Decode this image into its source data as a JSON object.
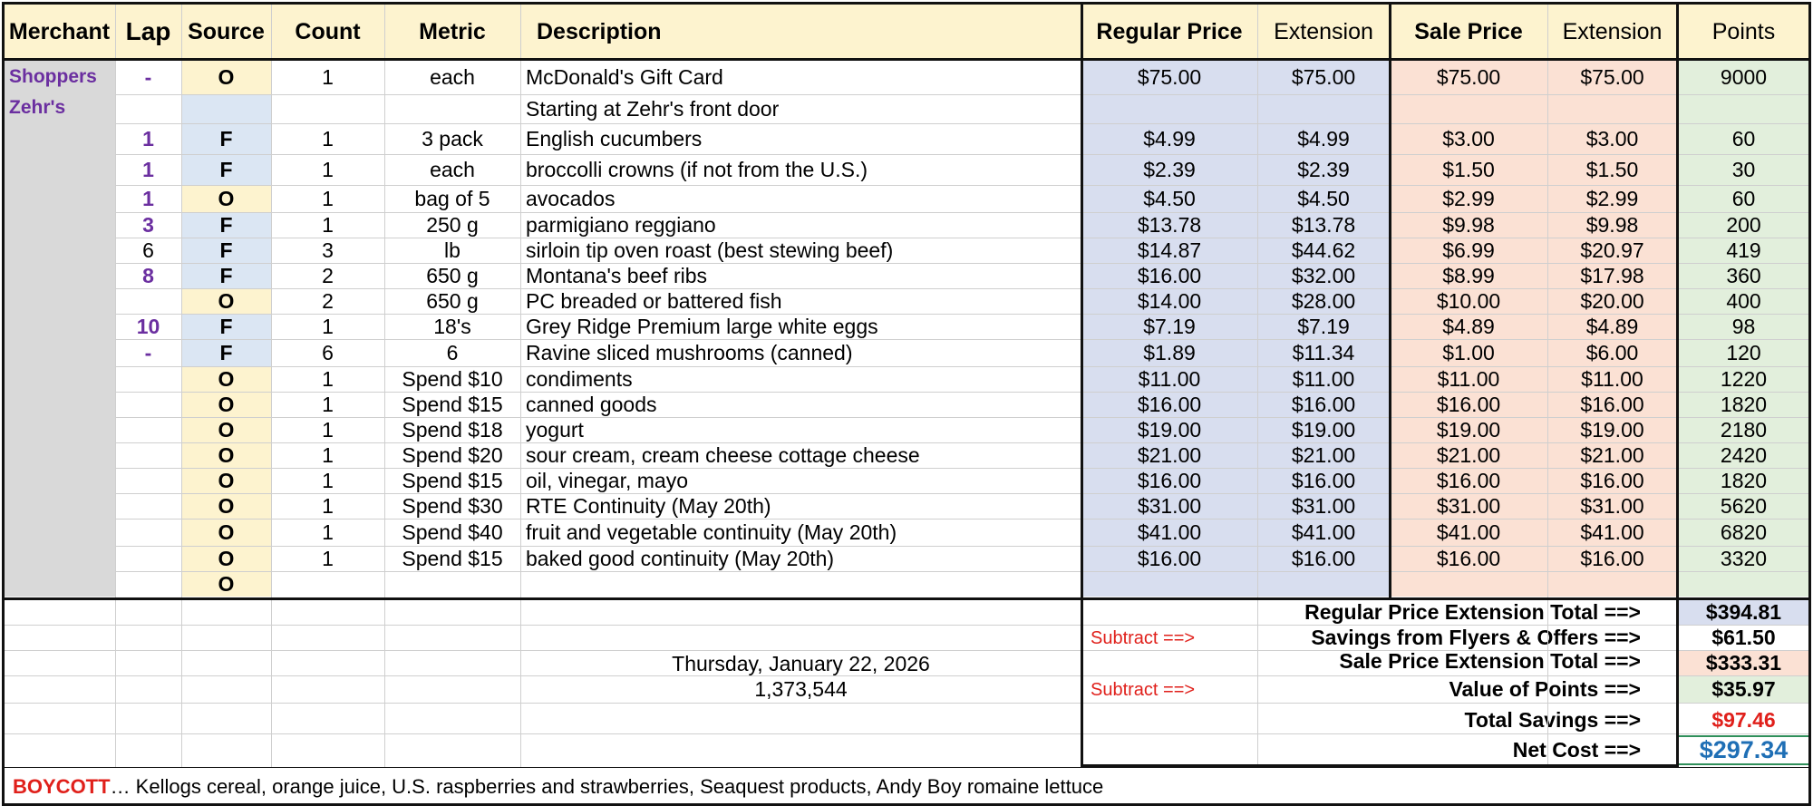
{
  "headers": {
    "merchant": "Merchant",
    "lap": "Lap",
    "source": "Source",
    "count": "Count",
    "metric": "Metric",
    "description": "Description",
    "regular_price": "Regular Price",
    "reg_extension": "Extension",
    "sale_price": "Sale Price",
    "sale_extension": "Extension",
    "points": "Points"
  },
  "merchants": [
    "Shoppers",
    "Zehr's"
  ],
  "rows": [
    {
      "lap": "-",
      "source": "O",
      "count": "1",
      "metric": "each",
      "desc": "McDonald's Gift Card",
      "reg": "$75.00",
      "regext": "$75.00",
      "sale": "$75.00",
      "saleext": "$75.00",
      "pts": "9000"
    },
    {
      "lap": "",
      "source": "",
      "count": "",
      "metric": "",
      "desc": "Starting at Zehr's front door",
      "reg": "",
      "regext": "",
      "sale": "",
      "saleext": "",
      "pts": ""
    },
    {
      "lap": "1",
      "source": "F",
      "count": "1",
      "metric": "3 pack",
      "desc": "English cucumbers",
      "reg": "$4.99",
      "regext": "$4.99",
      "sale": "$3.00",
      "saleext": "$3.00",
      "pts": "60"
    },
    {
      "lap": "1",
      "source": "F",
      "count": "1",
      "metric": "each",
      "desc": "broccolli crowns (if not from the U.S.)",
      "reg": "$2.39",
      "regext": "$2.39",
      "sale": "$1.50",
      "saleext": "$1.50",
      "pts": "30"
    },
    {
      "lap": "1",
      "source": "O",
      "count": "1",
      "metric": "bag of 5",
      "desc": "avocados",
      "reg": "$4.50",
      "regext": "$4.50",
      "sale": "$2.99",
      "saleext": "$2.99",
      "pts": "60"
    },
    {
      "lap": "3",
      "source": "F",
      "count": "1",
      "metric": "250 g",
      "desc": "parmigiano reggiano",
      "reg": "$13.78",
      "regext": "$13.78",
      "sale": "$9.98",
      "saleext": "$9.98",
      "pts": "200"
    },
    {
      "lap": "6",
      "source": "F",
      "count": "3",
      "metric": "lb",
      "desc": "sirloin tip oven roast  (best stewing beef)",
      "reg": "$14.87",
      "regext": "$44.62",
      "sale": "$6.99",
      "saleext": "$20.97",
      "pts": "419"
    },
    {
      "lap": "8",
      "source": "F",
      "count": "2",
      "metric": "650 g",
      "desc": "Montana's beef ribs",
      "reg": "$16.00",
      "regext": "$32.00",
      "sale": "$8.99",
      "saleext": "$17.98",
      "pts": "360"
    },
    {
      "lap": "",
      "source": "O",
      "count": "2",
      "metric": "650 g",
      "desc": "PC breaded or battered fish",
      "reg": "$14.00",
      "regext": "$28.00",
      "sale": "$10.00",
      "saleext": "$20.00",
      "pts": "400"
    },
    {
      "lap": "10",
      "source": "F",
      "count": "1",
      "metric": "18's",
      "desc": "Grey Ridge Premium large white eggs",
      "reg": "$7.19",
      "regext": "$7.19",
      "sale": "$4.89",
      "saleext": "$4.89",
      "pts": "98"
    },
    {
      "lap": "-",
      "source": "F",
      "count": "6",
      "metric": "6",
      "desc": "Ravine sliced mushrooms (canned)",
      "reg": "$1.89",
      "regext": "$11.34",
      "sale": "$1.00",
      "saleext": "$6.00",
      "pts": "120"
    },
    {
      "lap": "",
      "source": "O",
      "count": "1",
      "metric": "Spend $10",
      "desc": "condiments",
      "reg": "$11.00",
      "regext": "$11.00",
      "sale": "$11.00",
      "saleext": "$11.00",
      "pts": "1220"
    },
    {
      "lap": "",
      "source": "O",
      "count": "1",
      "metric": "Spend $15",
      "desc": "canned goods",
      "reg": "$16.00",
      "regext": "$16.00",
      "sale": "$16.00",
      "saleext": "$16.00",
      "pts": "1820"
    },
    {
      "lap": "",
      "source": "O",
      "count": "1",
      "metric": "Spend $18",
      "desc": "yogurt",
      "reg": "$19.00",
      "regext": "$19.00",
      "sale": "$19.00",
      "saleext": "$19.00",
      "pts": "2180"
    },
    {
      "lap": "",
      "source": "O",
      "count": "1",
      "metric": "Spend $20",
      "desc": "sour cream, cream cheese cottage cheese",
      "reg": "$21.00",
      "regext": "$21.00",
      "sale": "$21.00",
      "saleext": "$21.00",
      "pts": "2420"
    },
    {
      "lap": "",
      "source": "O",
      "count": "1",
      "metric": "Spend $15",
      "desc": "oil, vinegar, mayo",
      "reg": "$16.00",
      "regext": "$16.00",
      "sale": "$16.00",
      "saleext": "$16.00",
      "pts": "1820"
    },
    {
      "lap": "",
      "source": "O",
      "count": "1",
      "metric": "Spend $30",
      "desc": "RTE Continuity (May 20th)",
      "reg": "$31.00",
      "regext": "$31.00",
      "sale": "$31.00",
      "saleext": "$31.00",
      "pts": "5620"
    },
    {
      "lap": "",
      "source": "O",
      "count": "1",
      "metric": "Spend $40",
      "desc": "fruit and vegetable continuity (May 20th)",
      "reg": "$41.00",
      "regext": "$41.00",
      "sale": "$41.00",
      "saleext": "$41.00",
      "pts": "6820"
    },
    {
      "lap": "",
      "source": "O",
      "count": "1",
      "metric": "Spend $15",
      "desc": "baked good continuity (May 20th)",
      "reg": "$16.00",
      "regext": "$16.00",
      "sale": "$16.00",
      "saleext": "$16.00",
      "pts": "3320"
    },
    {
      "lap": "",
      "source": "O",
      "count": "",
      "metric": "",
      "desc": "",
      "reg": "",
      "regext": "",
      "sale": "",
      "saleext": "",
      "pts": ""
    }
  ],
  "summary": {
    "date": "Thursday, January 22, 2026",
    "number": "1,373,544",
    "subtract_1": "Subtract ==>",
    "subtract_2": "Subtract ==>",
    "reg_total_label": "Regular Price Extension Total ==>",
    "reg_total": "$394.81",
    "savings_label": "Savings from Flyers & Offers ==>",
    "savings": "$61.50",
    "sale_total_label": "Sale Price Extension Total  ==>",
    "sale_total": "$333.31",
    "points_label": "Value of Points ==>",
    "points_value": "$35.97",
    "total_savings_label": "Total Savings  ==>",
    "total_savings": "$97.46",
    "net_label": "Net Cost  ==>",
    "net_cost": "$297.34"
  },
  "footer": {
    "boycott_first": "B",
    "boycott_rest": "OYCOTT",
    "boycott_list": " … Kellogs cereal, orange juice, U.S. raspberries and strawberries, Seaquest products, Andy Boy romaine lettuce"
  },
  "colors": {
    "header": "#fdf3cf",
    "merchant_col": "#d9d9d9",
    "source_O": "#fdf3cf",
    "source_F": "#dbe6f3",
    "regular_price_col": "#d8deef",
    "sale_price_col": "#fbe1d4",
    "points_col": "#e2efdc",
    "purple_text": "#6b2fa0",
    "red_text": "#e0201b",
    "net_cost_text": "#1f6fb5"
  }
}
